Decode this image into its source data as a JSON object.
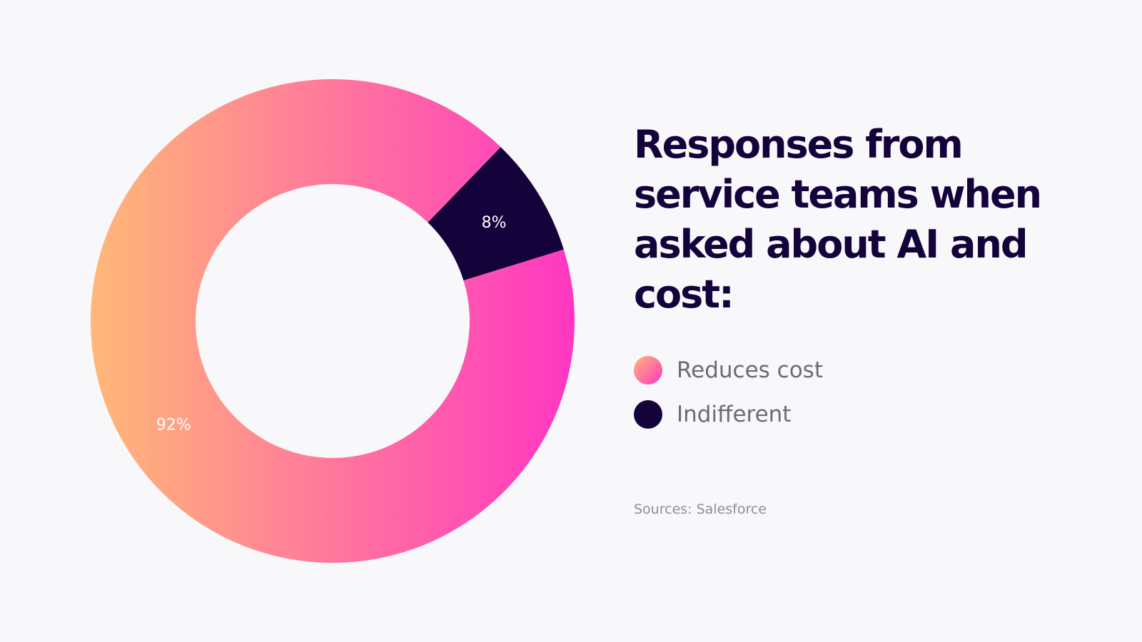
{
  "chart_data": {
    "type": "pie",
    "donut": true,
    "title": "Responses from service teams when asked about AI and cost:",
    "categories": [
      "Reduces cost",
      "Indifferent"
    ],
    "values": [
      92,
      8
    ],
    "labels": [
      "92%",
      "8%"
    ],
    "colors": {
      "Reduces cost": {
        "gradient_start": "#ffb877",
        "gradient_end": "#ff36c2"
      },
      "Indifferent": "#14023b"
    },
    "legend_position": "right",
    "source": "Sources: Salesforce"
  }
}
